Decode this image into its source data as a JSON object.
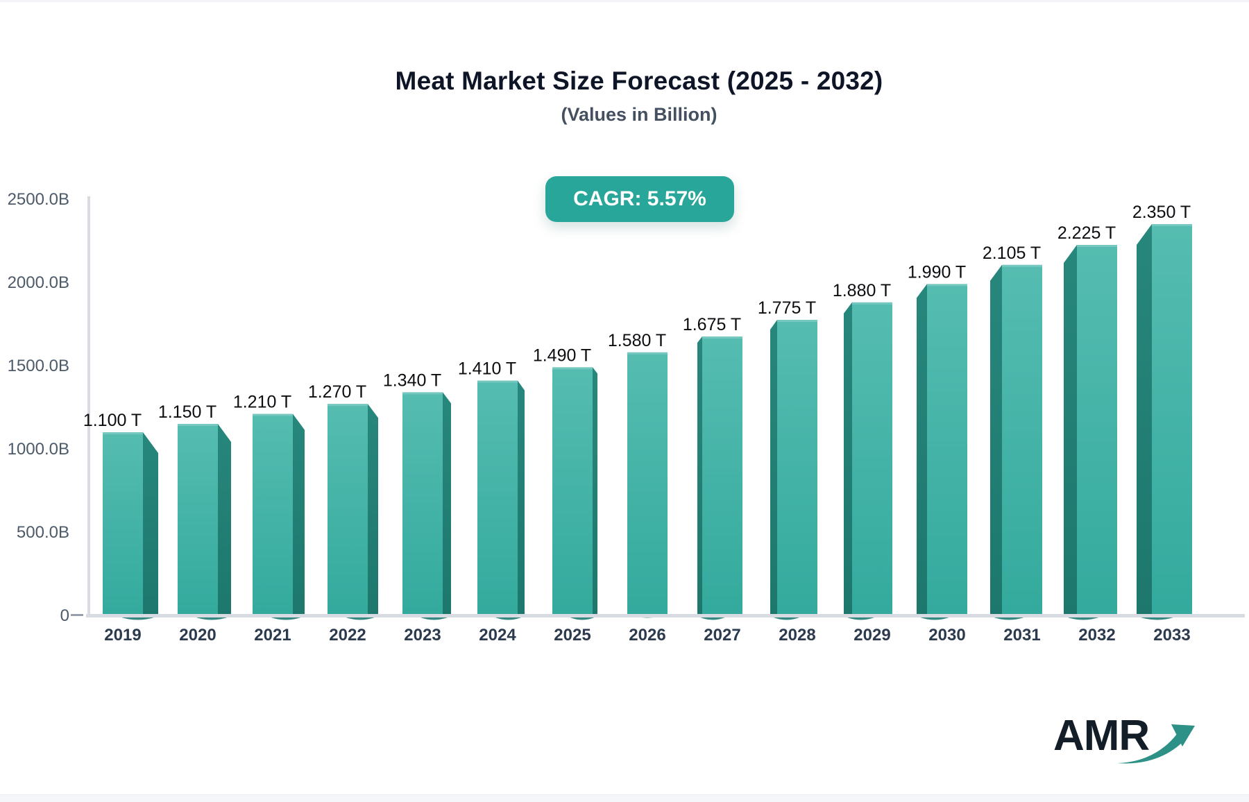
{
  "header": {
    "title": "Meat Market Size Forecast (2025 - 2032)",
    "subtitle": "(Values in Billion)",
    "cagr_label": "CAGR: 5.57%"
  },
  "chart_data": {
    "type": "bar",
    "title": "Meat Market Size Forecast (2025 - 2032)",
    "subtitle": "(Values in Billion)",
    "unit": "Billion USD-style 'B' axis, 'T' data labels",
    "categories": [
      "2019",
      "2020",
      "2021",
      "2022",
      "2023",
      "2024",
      "2025",
      "2026",
      "2027",
      "2028",
      "2029",
      "2030",
      "2031",
      "2032",
      "2033"
    ],
    "values_billions": [
      1100,
      1150,
      1210,
      1270,
      1340,
      1410,
      1490,
      1580,
      1675,
      1775,
      1880,
      1990,
      2105,
      2225,
      2350
    ],
    "bar_labels": [
      "1.100 T",
      "1.150 T",
      "1.210 T",
      "1.270 T",
      "1.340 T",
      "1.410 T",
      "1.490 T",
      "1.580 T",
      "1.675 T",
      "1.775 T",
      "1.880 T",
      "1.990 T",
      "2.105 T",
      "2.225 T",
      "2.350 T"
    ],
    "y_axis": {
      "ticks": [
        "2500.0B",
        "2000.0B",
        "1500.0B",
        "1000.0B",
        "500.0B",
        "0"
      ],
      "ylim": [
        0,
        2500
      ]
    },
    "grid": false,
    "legend": false,
    "annotations": [
      "CAGR: 5.57%"
    ],
    "colors": {
      "bar_face_top": "#56bcb1",
      "bar_face_bottom": "#33aa9d",
      "bar_face_highlight": "#8ad1c8",
      "bar_side_top": "#27877c",
      "bar_side_bottom": "#1d776d",
      "bar_shadow": "#1e7c72",
      "axis_line": "#d8dbe1",
      "zero_dash": "#97a0ac",
      "tick_label": "#4d5a6a",
      "year_label": "#2c3a4e",
      "value_label": "#0b0d10",
      "badge_bg": "#29a69a"
    }
  },
  "branding": {
    "logo_text": "AMR",
    "logo_arrow_icon": "growth-arrow-icon",
    "logo_arrow_color": "#2e9187"
  }
}
